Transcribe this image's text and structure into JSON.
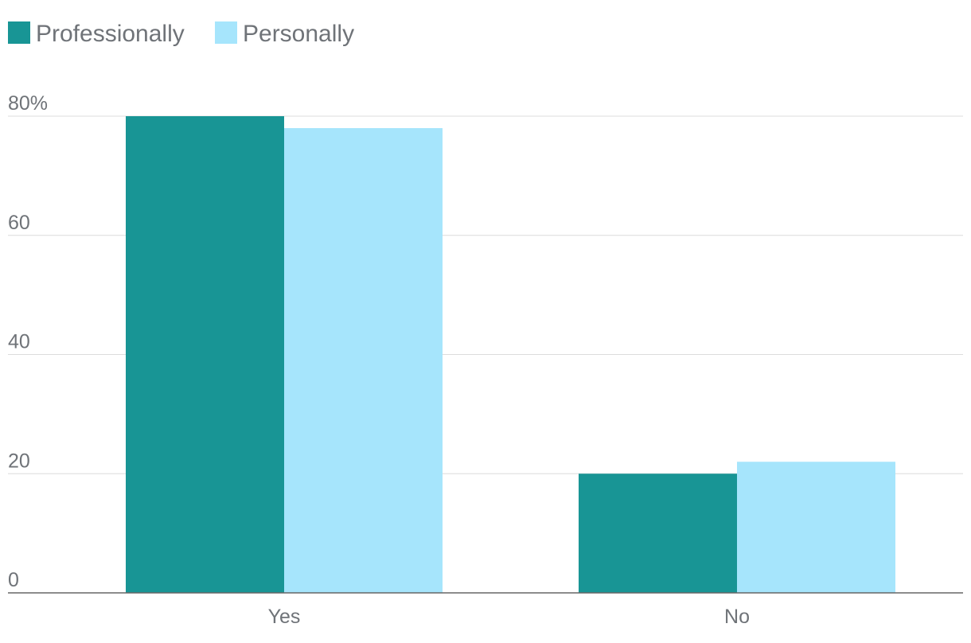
{
  "chart_data": {
    "type": "bar",
    "categories": [
      "Yes",
      "No"
    ],
    "series": [
      {
        "name": "Professionally",
        "color": "#189595",
        "values": [
          80,
          20
        ]
      },
      {
        "name": "Personally",
        "color": "#a6e5fc",
        "values": [
          78,
          22
        ]
      }
    ],
    "title": "",
    "xlabel": "",
    "ylabel": "",
    "ylim": [
      0,
      80
    ],
    "yticks": [
      {
        "value": 0,
        "label": "0"
      },
      {
        "value": 20,
        "label": "20"
      },
      {
        "value": 40,
        "label": "40"
      },
      {
        "value": 60,
        "label": "60"
      },
      {
        "value": 80,
        "label": "80%"
      }
    ],
    "grid": true,
    "legend_position": "top-left"
  }
}
